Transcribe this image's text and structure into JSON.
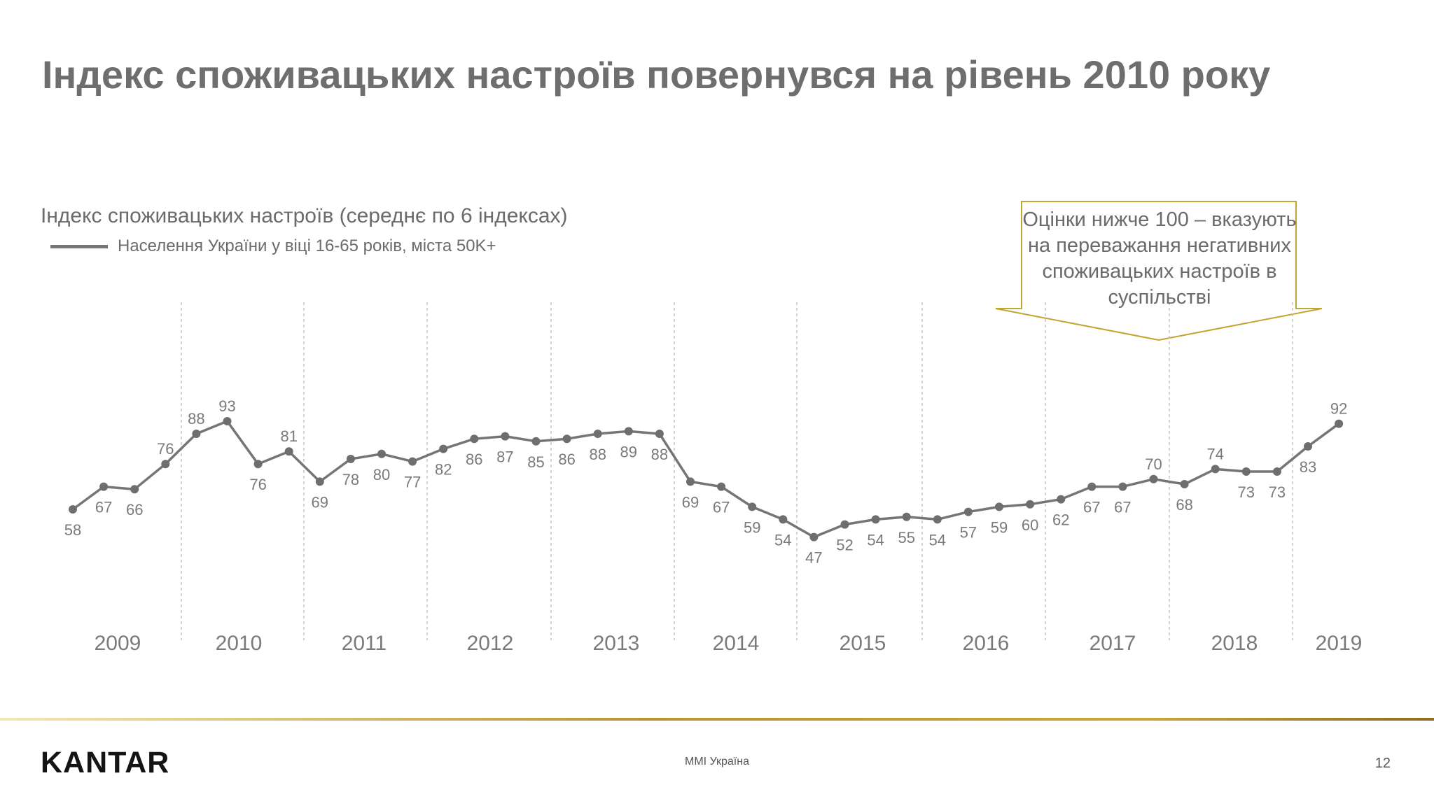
{
  "slide": {
    "title": "Індекс споживацьких настроїв повернувся на рівень 2010 року",
    "callout": "Оцінки нижче 100 – вказують на переважання негативних споживацьких настроїв в суспільстві",
    "logo": "KANTAR",
    "footer_center": "MMI Україна",
    "page_number": "12"
  },
  "colors": {
    "line": "#757575",
    "callout_border": "#c2a532",
    "footer_accent": "#b8962e"
  },
  "chart_data": {
    "type": "line",
    "title": "Індекс споживацьких настроїв (середнє по 6 індексах)",
    "years": [
      "2009",
      "2010",
      "2011",
      "2012",
      "2013",
      "2014",
      "2015",
      "2016",
      "2017",
      "2018",
      "2019"
    ],
    "series": [
      {
        "name": "Населення України у віці 16-65 років, міста 50K+",
        "values": [
          58,
          67,
          66,
          76,
          88,
          93,
          76,
          81,
          69,
          78,
          80,
          77,
          82,
          86,
          87,
          85,
          86,
          88,
          89,
          88,
          69,
          67,
          59,
          54,
          47,
          52,
          54,
          55,
          54,
          57,
          59,
          60,
          62,
          67,
          67,
          70,
          68,
          74,
          73,
          73,
          83,
          92
        ],
        "label_pos": [
          "below",
          "below",
          "below",
          "above",
          "above",
          "above",
          "below",
          "above",
          "below",
          "below",
          "below",
          "below",
          "below",
          "below",
          "below",
          "below",
          "below",
          "below",
          "below",
          "below",
          "below",
          "below",
          "below",
          "below",
          "below",
          "below",
          "below",
          "below",
          "below",
          "below",
          "below",
          "below",
          "below",
          "below",
          "below",
          "above",
          "below",
          "above",
          "below",
          "below",
          "below",
          "above"
        ]
      }
    ],
    "grid": "vertical-dashed-year-separators",
    "legend_position": "top-left"
  }
}
